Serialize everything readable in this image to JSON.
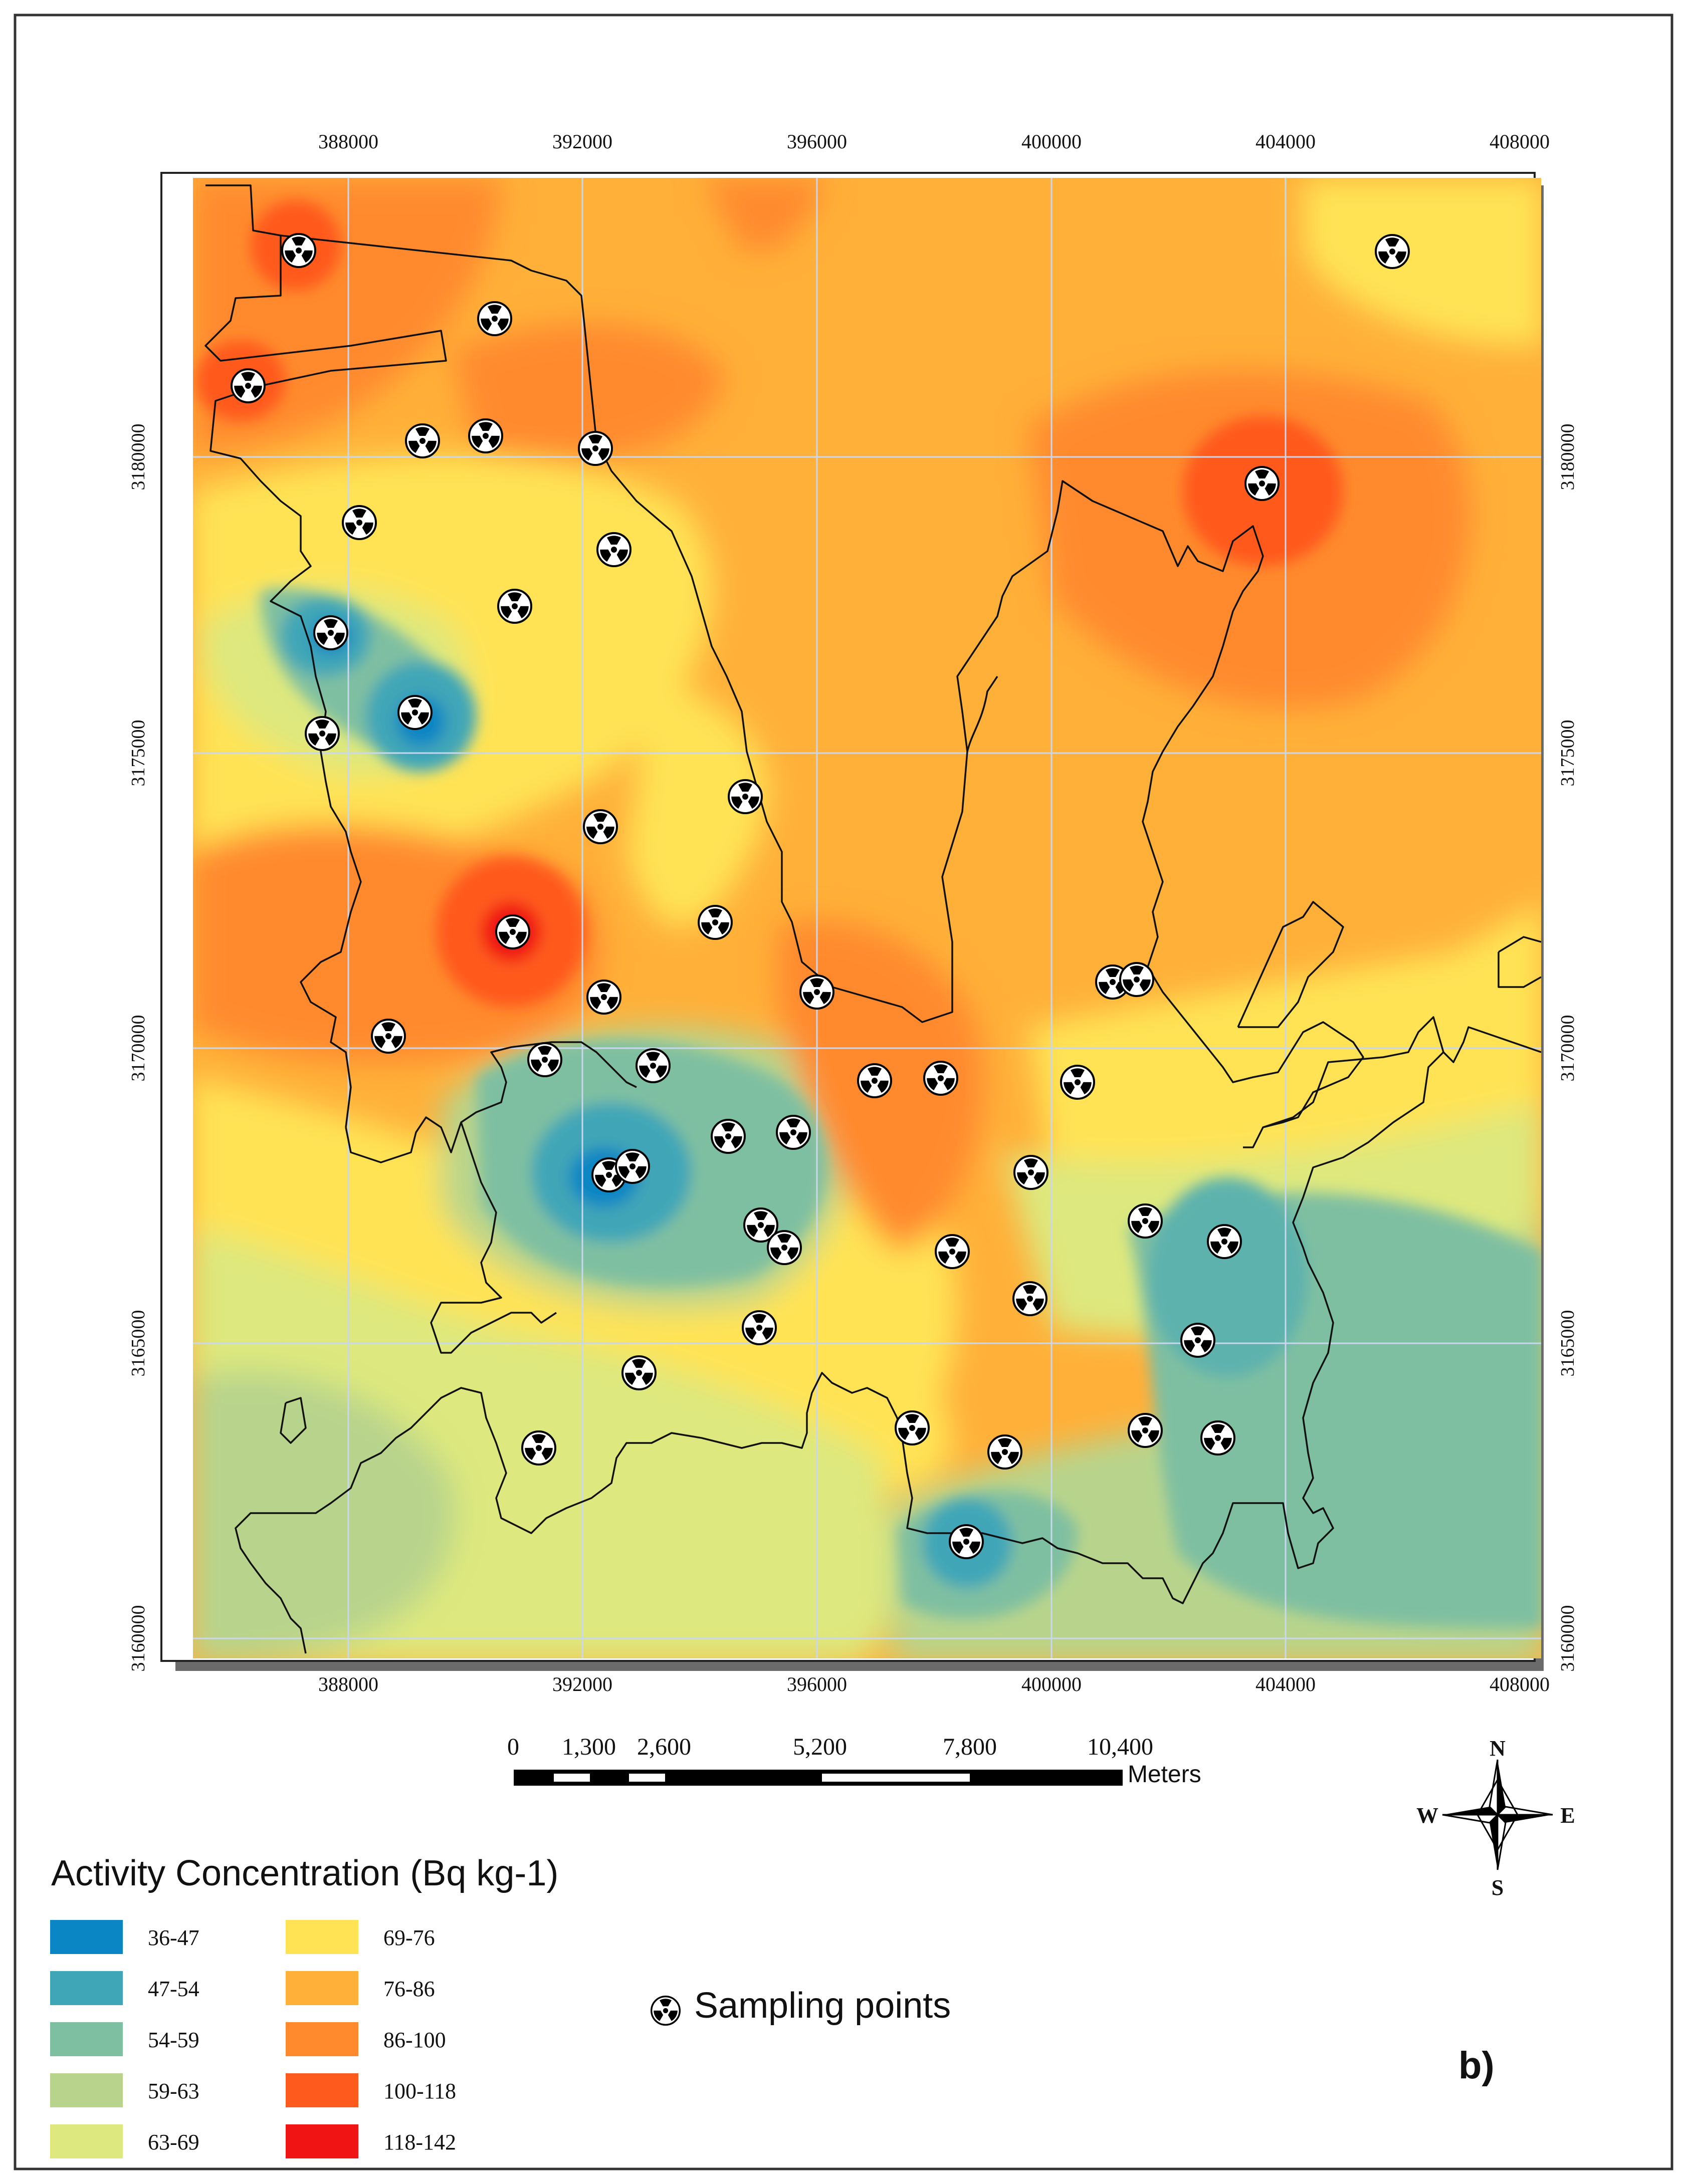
{
  "map": {
    "x_ticks": [
      "388000",
      "392000",
      "396000",
      "400000",
      "404000",
      "408000"
    ],
    "y_ticks": [
      "3180000",
      "3175000",
      "3170000",
      "3165000",
      "3160000"
    ],
    "scale_labels": [
      "0",
      "1,300",
      "2,600",
      "5,200",
      "7,800",
      "10,400"
    ],
    "scale_unit": "Meters",
    "compass": {
      "n": "N",
      "s": "S",
      "e": "E",
      "w": "W"
    },
    "panel_label": "b)"
  },
  "legend": {
    "title": "Activity Concentration (Bq kg-1)",
    "classes": [
      {
        "label": "36-47",
        "color": "#0a86c4"
      },
      {
        "label": "47-54",
        "color": "#3fa6b7"
      },
      {
        "label": "54-59",
        "color": "#7fbfa1"
      },
      {
        "label": "59-63",
        "color": "#b8d48c"
      },
      {
        "label": "63-69",
        "color": "#dde87e"
      },
      {
        "label": "69-76",
        "color": "#ffe354"
      },
      {
        "label": "76-86",
        "color": "#ffb039"
      },
      {
        "label": "86-100",
        "color": "#ff8a2e"
      },
      {
        "label": "100-118",
        "color": "#ff5a1e"
      },
      {
        "label": "118-142",
        "color": "#f01414"
      }
    ],
    "sampling_label": "Sampling points"
  }
}
